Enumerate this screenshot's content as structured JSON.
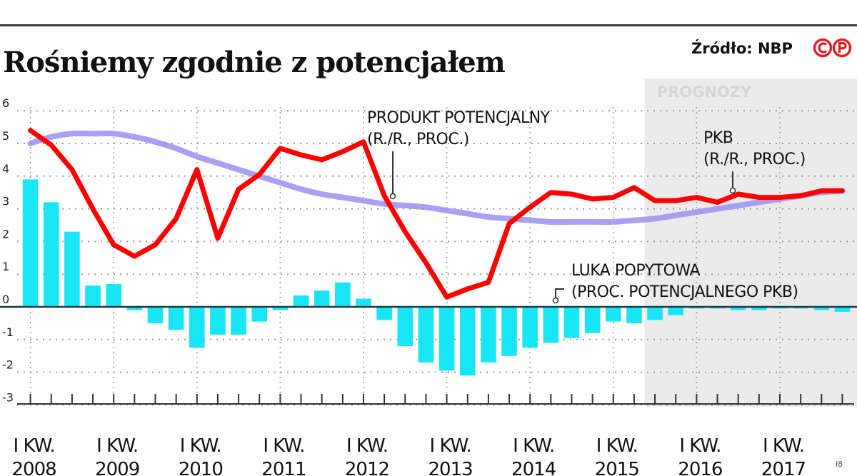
{
  "header": {
    "title": "Rośniemy zgodnie z potencjałem",
    "source": "Źródło: NBP",
    "logo_text": "©P"
  },
  "colors": {
    "gdp": "#ff0000",
    "potential": "#9f97f2",
    "gap": "#18e6f5",
    "forecast_bg": "#ebebeb",
    "forecast_text": "#d5d5d5",
    "grid": "#9a9a9a",
    "logo": "#e31e24"
  },
  "chart_data": {
    "type": "bar+line",
    "x": [
      "2008 Q1",
      "2008 Q2",
      "2008 Q3",
      "2008 Q4",
      "2009 Q1",
      "2009 Q2",
      "2009 Q3",
      "2009 Q4",
      "2010 Q1",
      "2010 Q2",
      "2010 Q3",
      "2010 Q4",
      "2011 Q1",
      "2011 Q2",
      "2011 Q3",
      "2011 Q4",
      "2012 Q1",
      "2012 Q2",
      "2012 Q3",
      "2012 Q4",
      "2013 Q1",
      "2013 Q2",
      "2013 Q3",
      "2013 Q4",
      "2014 Q1",
      "2014 Q2",
      "2014 Q3",
      "2014 Q4",
      "2015 Q1",
      "2015 Q2",
      "2015 Q3",
      "2015 Q4",
      "2016 Q1",
      "2016 Q2",
      "2016 Q3",
      "2016 Q4",
      "2017 Q1",
      "2017 Q2",
      "2017 Q3",
      "2017 Q4"
    ],
    "x_tick_labels": [
      [
        "I KW.",
        "2008"
      ],
      [
        "I KW.",
        "2009"
      ],
      [
        "I KW.",
        "2010"
      ],
      [
        "I KW.",
        "2011"
      ],
      [
        "I KW.",
        "2012"
      ],
      [
        "I KW.",
        "2013"
      ],
      [
        "I KW.",
        "2014"
      ],
      [
        "I KW.",
        "2015"
      ],
      [
        "I KW.",
        "2016"
      ],
      [
        "I KW.",
        "2017"
      ]
    ],
    "y_ticks": [
      6,
      5,
      4,
      3,
      2,
      1,
      0,
      -1,
      -2,
      -3
    ],
    "ylim": [
      -3,
      6
    ],
    "forecast_from": "2015 Q3",
    "forecast_label": "PROGNOZY",
    "series": [
      {
        "name": "LUKA POPYTOWA",
        "name_line2": "(PROC. POTENCJALNEGO PKB)",
        "type": "bar",
        "values": [
          3.9,
          3.2,
          2.3,
          0.65,
          0.7,
          -0.1,
          -0.5,
          -0.7,
          -1.25,
          -0.85,
          -0.85,
          -0.45,
          -0.1,
          0.35,
          0.5,
          0.75,
          0.25,
          -0.4,
          -1.2,
          -1.7,
          -1.95,
          -2.1,
          -1.7,
          -1.5,
          -1.25,
          -1.1,
          -0.95,
          -0.8,
          -0.45,
          -0.5,
          -0.4,
          -0.25,
          -0.05,
          -0.05,
          -0.1,
          -0.1,
          -0.05,
          -0.05,
          -0.1,
          -0.15
        ]
      },
      {
        "name": "PKB",
        "name_line2": "(R./R., PROC.)",
        "type": "line",
        "values": [
          5.4,
          4.95,
          4.2,
          3.0,
          1.9,
          1.55,
          1.9,
          2.7,
          4.2,
          2.1,
          3.6,
          4.05,
          4.85,
          4.65,
          4.5,
          4.75,
          5.05,
          3.4,
          2.3,
          1.35,
          0.3,
          0.55,
          0.75,
          2.55,
          3.05,
          3.5,
          3.45,
          3.3,
          3.35,
          3.65,
          3.25,
          3.25,
          3.35,
          3.2,
          3.45,
          3.35,
          3.35,
          3.4,
          3.55,
          3.55
        ]
      },
      {
        "name": "PRODUKT POTENCJALNY",
        "name_line2": "(R./R., PROC.)",
        "type": "line",
        "values": [
          5.0,
          5.2,
          5.3,
          5.3,
          5.3,
          5.2,
          5.05,
          4.85,
          4.6,
          4.4,
          4.2,
          4.0,
          3.8,
          3.6,
          3.45,
          3.35,
          3.25,
          3.15,
          3.1,
          3.05,
          2.95,
          2.85,
          2.75,
          2.7,
          2.65,
          2.6,
          2.6,
          2.6,
          2.6,
          2.65,
          2.7,
          2.8,
          2.9,
          3.0,
          3.1,
          3.2,
          3.3,
          3.4,
          3.5,
          3.55
        ]
      }
    ]
  }
}
